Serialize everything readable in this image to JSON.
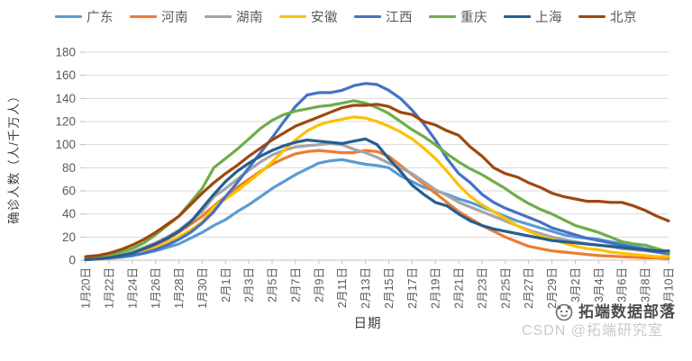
{
  "watermark": {
    "brand": "拓端数据部落",
    "csdn": "CSDN @拓端研究室"
  },
  "chart_data": {
    "type": "line",
    "title": "",
    "xlabel": "日期",
    "ylabel": "确诊人数（人/千万人）",
    "ylim": [
      0,
      180
    ],
    "ytick_step": 20,
    "grid": true,
    "legend_position": "top",
    "x_label_every": 2,
    "x": [
      "1月20日",
      "1月21日",
      "1月22日",
      "1月23日",
      "1月24日",
      "1月25日",
      "1月26日",
      "1月27日",
      "1月28日",
      "1月29日",
      "1月30日",
      "1月31日",
      "2月1日",
      "2月2日",
      "2月3日",
      "2月4日",
      "2月5日",
      "2月6日",
      "2月7日",
      "2月8日",
      "2月9日",
      "2月10日",
      "2月11日",
      "2月12日",
      "2月13日",
      "2月14日",
      "2月15日",
      "2月16日",
      "2月17日",
      "2月18日",
      "2月19日",
      "2月20日",
      "2月21日",
      "2月22日",
      "2月23日",
      "2月24日",
      "2月25日",
      "2月26日",
      "2月27日",
      "2月28日",
      "2月29日",
      "3月1日",
      "3月2日",
      "3月3日",
      "3月4日",
      "3月5日",
      "3月6日",
      "3月7日",
      "3月8日",
      "3月9日",
      "3月10日"
    ],
    "series": [
      {
        "name": "广东",
        "color": "#5B9BD5",
        "values": [
          0.5,
          1,
          1.5,
          2.5,
          4,
          6,
          8,
          11,
          14,
          19,
          24,
          30,
          35,
          42,
          48,
          55,
          62,
          68,
          74,
          79,
          84,
          86,
          87,
          85,
          83,
          82,
          80,
          73,
          68,
          63,
          60,
          57,
          53,
          50,
          46,
          42,
          38,
          34,
          31,
          28,
          25,
          22,
          20,
          19,
          18,
          16,
          14,
          12,
          10,
          8,
          7
        ]
      },
      {
        "name": "河南",
        "color": "#ED7D31",
        "values": [
          0.5,
          1,
          2,
          4,
          6,
          9,
          13,
          18,
          24,
          31,
          38,
          47,
          55,
          63,
          70,
          77,
          83,
          88,
          92,
          94,
          95,
          94,
          93,
          93,
          95,
          94,
          90,
          82,
          74,
          66,
          58,
          50,
          42,
          36,
          30,
          25,
          20,
          16,
          12,
          10,
          8,
          7,
          6,
          5,
          4,
          3.5,
          3,
          2.5,
          2,
          2,
          1.5
        ]
      },
      {
        "name": "湖南",
        "color": "#A5A5A5",
        "values": [
          1,
          2,
          3,
          5,
          7,
          11,
          15,
          20,
          26,
          34,
          42,
          55,
          62,
          70,
          78,
          85,
          91,
          95,
          98,
          99,
          100,
          101,
          100,
          96,
          93,
          89,
          84,
          80,
          75,
          68,
          61,
          56,
          50,
          46,
          42,
          38,
          34,
          30,
          26,
          23,
          20,
          18,
          16,
          14,
          13,
          12,
          10,
          9,
          8,
          7,
          5
        ]
      },
      {
        "name": "安徽",
        "color": "#FFC000",
        "values": [
          0.5,
          1,
          1.5,
          3,
          4.5,
          7,
          10,
          15,
          20,
          26,
          33,
          46,
          53,
          60,
          68,
          76,
          85,
          95,
          104,
          112,
          117,
          120,
          122,
          124,
          123,
          120,
          116,
          111,
          105,
          97,
          88,
          77,
          65,
          55,
          48,
          42,
          36,
          30,
          25,
          21,
          18,
          15,
          12,
          10,
          9,
          7,
          6,
          5,
          4,
          3,
          3
        ]
      },
      {
        "name": "江西",
        "color": "#4472C4",
        "values": [
          0.5,
          1,
          2,
          3,
          4,
          6,
          9,
          13,
          18,
          24,
          32,
          42,
          55,
          67,
          80,
          93,
          106,
          120,
          133,
          143,
          145,
          145,
          147,
          151,
          153,
          152,
          147,
          140,
          130,
          118,
          104,
          88,
          75,
          67,
          57,
          50,
          45,
          41,
          37,
          33,
          28,
          25,
          22,
          19,
          17,
          15,
          13,
          11,
          9,
          7,
          6
        ]
      },
      {
        "name": "重庆",
        "color": "#70AD47",
        "values": [
          1,
          2,
          4,
          7,
          10,
          15,
          22,
          30,
          38,
          50,
          62,
          80,
          88,
          96,
          105,
          114,
          121,
          126,
          129,
          131,
          133,
          134,
          136,
          138,
          136,
          132,
          127,
          120,
          113,
          107,
          100,
          92,
          85,
          79,
          74,
          68,
          62,
          55,
          49,
          44,
          40,
          35,
          30,
          27,
          24,
          20,
          16,
          14,
          13,
          10,
          7
        ]
      },
      {
        "name": "上海",
        "color": "#255E91",
        "values": [
          0.5,
          1,
          2,
          4,
          6,
          10,
          14,
          19,
          25,
          33,
          45,
          57,
          68,
          77,
          84,
          90,
          95,
          99,
          102,
          104,
          103,
          102,
          101,
          103,
          105,
          100,
          88,
          77,
          65,
          57,
          50,
          47,
          40,
          34,
          30,
          27,
          25,
          23,
          21,
          19,
          17,
          16,
          15,
          14,
          13,
          12,
          11,
          10,
          9,
          8,
          8
        ]
      },
      {
        "name": "北京",
        "color": "#9E480E",
        "values": [
          3,
          4,
          6,
          9,
          13,
          18,
          24,
          31,
          38,
          48,
          58,
          67,
          75,
          82,
          90,
          97,
          104,
          110,
          116,
          120,
          124,
          128,
          132,
          134,
          134,
          135,
          133,
          128,
          126,
          120,
          117,
          112,
          108,
          98,
          90,
          80,
          75,
          72,
          67,
          63,
          58,
          55,
          53,
          51,
          51,
          50,
          50,
          47,
          43,
          38,
          34
        ]
      }
    ]
  }
}
